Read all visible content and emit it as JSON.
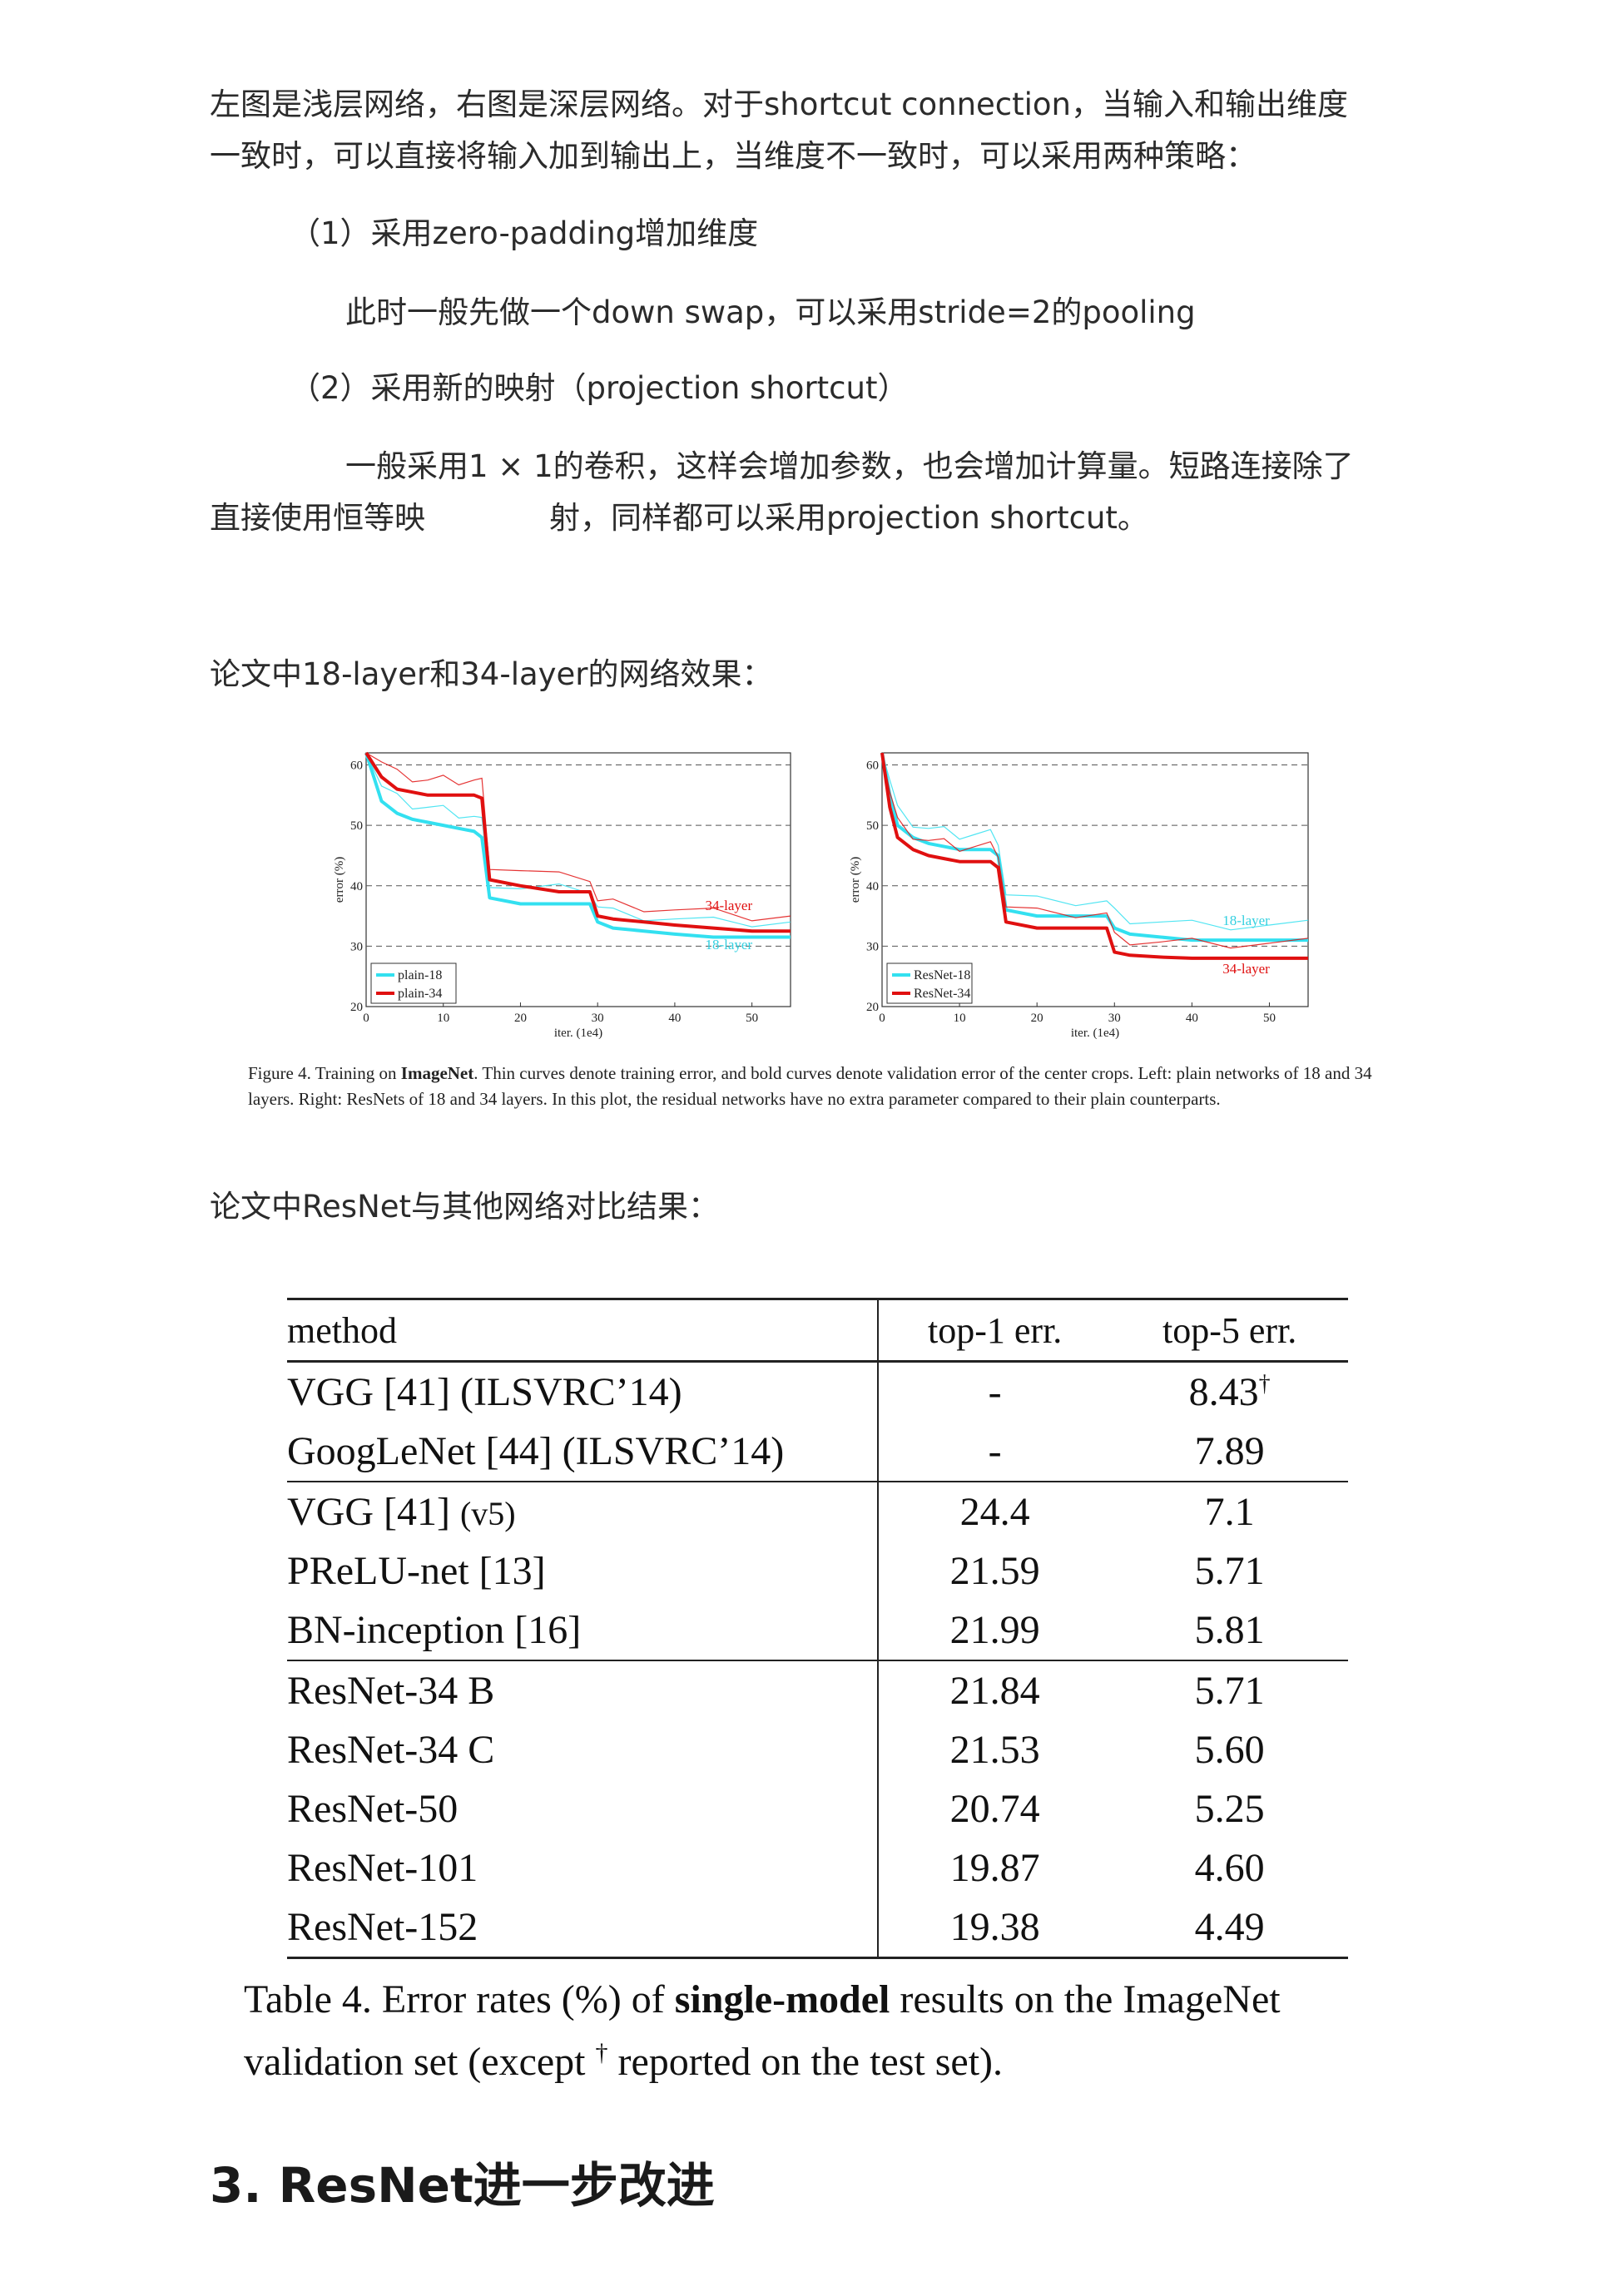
{
  "intro": {
    "line1": "左图是浅层网络，右图是深层网络。对于shortcut connection，当输入和输出维度",
    "line2": "一致时，可以直接将输入加到输出上，当维度不一致时，可以采用两种策略："
  },
  "strategy1": {
    "title": "（1）采用zero-padding增加维度",
    "detail": "此时一般先做一个down swap，可以采用stride=2的pooling"
  },
  "strategy2": {
    "title": "（2）采用新的映射（projection shortcut）",
    "detail1": "一般采用1 × 1的卷积，这样会增加参数，也会增加计算量。短路连接除了",
    "detail2a": "直接使用恒等映",
    "detail2b": "射，同样都可以采用projection shortcut。"
  },
  "fig_intro": "论文中18-layer和34-layer的网络效果：",
  "figure_caption": {
    "prefix": "Figure 4. Training on ",
    "bold": "ImageNet",
    "rest": ". Thin curves denote training error, and bold curves denote validation error of the center crops. Left: plain networks of 18 and 34 layers. Right: ResNets of 18 and 34 layers. In this plot, the residual networks have no extra parameter compared to their plain counterparts."
  },
  "chart_data": [
    {
      "type": "line",
      "xlabel": "iter. (1e4)",
      "ylabel": "error (%)",
      "xlim": [
        0,
        55
      ],
      "ylim": [
        20,
        62
      ],
      "xticks": [
        "0",
        "10",
        "20",
        "30",
        "40",
        "50"
      ],
      "yticks": [
        "20",
        "30",
        "40",
        "50",
        "60"
      ],
      "grid": "dashed horizontal",
      "legend": "bottom-left",
      "series": [
        {
          "name": "plain-18",
          "color": "#33e0f0",
          "style": "bold",
          "x": [
            0,
            2,
            4,
            6,
            8,
            10,
            12,
            14,
            15,
            16,
            20,
            25,
            29,
            30,
            32,
            36,
            40,
            45,
            50,
            55
          ],
          "values": [
            62,
            54,
            52,
            51,
            50.5,
            50,
            49.5,
            49,
            48,
            38,
            37,
            37,
            37,
            34,
            33,
            32.5,
            32,
            31.5,
            31.5,
            31.5
          ]
        },
        {
          "name": "plain-34",
          "color": "#e01010",
          "style": "bold",
          "x": [
            0,
            2,
            4,
            6,
            8,
            10,
            12,
            14,
            15,
            16,
            20,
            25,
            29,
            30,
            32,
            36,
            40,
            45,
            50,
            55
          ],
          "values": [
            64,
            58,
            56,
            55.5,
            55,
            55,
            55,
            55,
            54.5,
            41,
            40,
            39,
            39,
            35,
            34.5,
            34,
            33.5,
            33,
            32.5,
            32.5
          ]
        }
      ],
      "annotations": [
        "34-layer",
        "18-layer"
      ]
    },
    {
      "type": "line",
      "xlabel": "iter. (1e4)",
      "ylabel": "error (%)",
      "xlim": [
        0,
        55
      ],
      "ylim": [
        20,
        62
      ],
      "xticks": [
        "0",
        "10",
        "20",
        "30",
        "40",
        "50"
      ],
      "yticks": [
        "20",
        "30",
        "40",
        "50",
        "60"
      ],
      "grid": "dashed horizontal",
      "legend": "bottom-left",
      "series": [
        {
          "name": "ResNet-18",
          "color": "#33e0f0",
          "style": "bold",
          "x": [
            0,
            1,
            2,
            4,
            6,
            8,
            10,
            12,
            14,
            15,
            16,
            20,
            25,
            29,
            30,
            32,
            36,
            40,
            45,
            50,
            55
          ],
          "values": [
            62,
            55,
            50,
            48,
            47,
            46.5,
            46,
            46,
            46,
            45,
            36,
            35,
            35,
            35,
            33,
            32,
            31.5,
            31,
            31,
            31,
            31
          ]
        },
        {
          "name": "ResNet-34",
          "color": "#e01010",
          "style": "bold",
          "x": [
            0,
            1,
            2,
            4,
            6,
            8,
            10,
            12,
            14,
            15,
            16,
            20,
            25,
            29,
            30,
            32,
            36,
            40,
            45,
            50,
            55
          ],
          "values": [
            62,
            53,
            48,
            46,
            45,
            44.5,
            44,
            44,
            44,
            43,
            34,
            33,
            33,
            33,
            29,
            28.5,
            28.2,
            28,
            28,
            28,
            28
          ]
        }
      ],
      "annotations": [
        "18-layer",
        "34-layer"
      ]
    }
  ],
  "table_intro": "论文中ResNet与其他网络对比结果：",
  "table": {
    "headers": [
      "method",
      "top-1 err.",
      "top-5 err."
    ],
    "rows": [
      [
        "VGG [41] (ILSVRC’14)",
        "-",
        "8.43"
      ],
      [
        "GoogLeNet [44] (ILSVRC’14)",
        "-",
        "7.89"
      ],
      [
        "VGG [41] ",
        "24.4",
        "7.1"
      ],
      [
        "PReLU-net [13]",
        "21.59",
        "5.71"
      ],
      [
        "BN-inception [16]",
        "21.99",
        "5.81"
      ],
      [
        "ResNet-34 B",
        "21.84",
        "5.71"
      ],
      [
        "ResNet-34 C",
        "21.53",
        "5.60"
      ],
      [
        "ResNet-50",
        "20.74",
        "5.25"
      ],
      [
        "ResNet-101",
        "19.87",
        "4.60"
      ],
      [
        "ResNet-152",
        "19.38",
        "4.49"
      ]
    ],
    "dagger": "†",
    "v5": "(v5)"
  },
  "table_caption": {
    "a": "Table 4. Error rates (%) of ",
    "b": "single-model",
    "c": " results on the ImageNet validation set (except ",
    "dagger": "†",
    "d": " reported on the test set)."
  },
  "section_heading": "3. ResNet进一步改进"
}
